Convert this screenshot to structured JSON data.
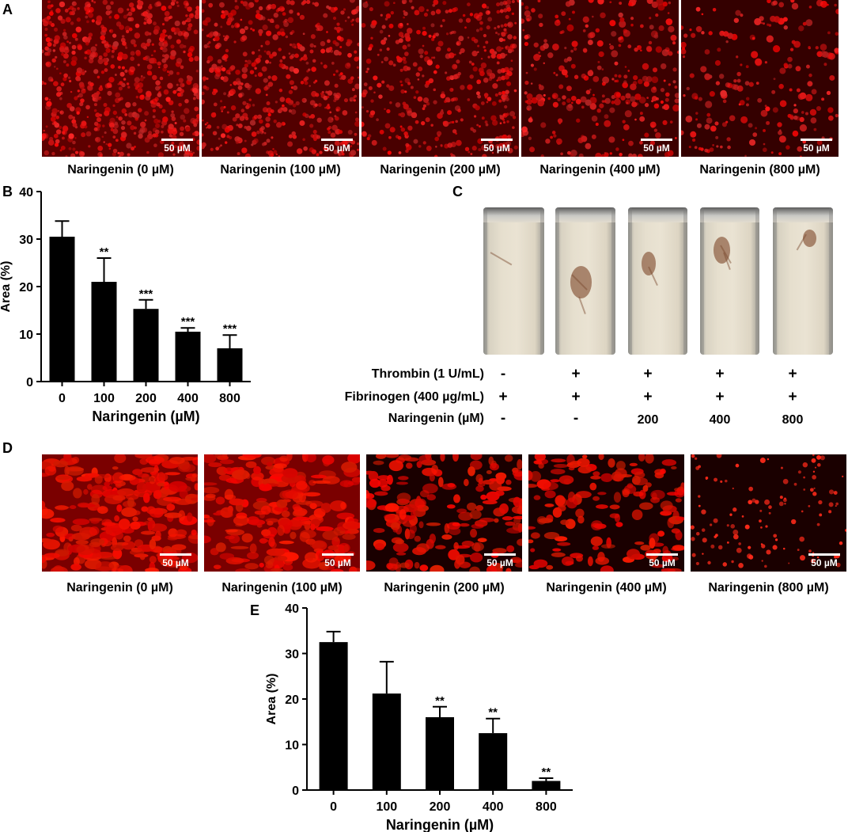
{
  "panels": {
    "A": {
      "letter": "A",
      "images": [
        {
          "caption": "Naringenin (0 µM)",
          "scale": "50 µM",
          "density": 0.9
        },
        {
          "caption": "Naringenin (100 µM)",
          "scale": "50 µM",
          "density": 0.7
        },
        {
          "caption": "Naringenin (200 µM)",
          "scale": "50 µM",
          "density": 0.55
        },
        {
          "caption": "Naringenin (400 µM)",
          "scale": "50 µM",
          "density": 0.35
        },
        {
          "caption": "Naringenin (800 µM)",
          "scale": "50 µM",
          "density": 0.2
        }
      ]
    },
    "B": {
      "letter": "B"
    },
    "C": {
      "letter": "C",
      "rows": [
        {
          "label": "Thrombin (1 U/mL)",
          "marks": [
            "-",
            "+",
            "+",
            "+",
            "+"
          ]
        },
        {
          "label": "Fibrinogen (400 µg/mL)",
          "marks": [
            "+",
            "+",
            "+",
            "+",
            "+"
          ]
        },
        {
          "label": "Naringenin (µM)",
          "marks": [
            "-",
            "-",
            "200",
            "400",
            "800"
          ]
        }
      ]
    },
    "D": {
      "letter": "D",
      "images": [
        {
          "caption": "Naringenin (0 µM)",
          "scale": "50 µM",
          "density": 1.0
        },
        {
          "caption": "Naringenin (100 µM)",
          "scale": "50 µM",
          "density": 0.85
        },
        {
          "caption": "Naringenin (200 µM)",
          "scale": "50 µM",
          "density": 0.6
        },
        {
          "caption": "Naringenin (400 µM)",
          "scale": "50 µM",
          "density": 0.45
        },
        {
          "caption": "Naringenin (800 µM)",
          "scale": "50 µM",
          "density": 0.12
        }
      ]
    },
    "E": {
      "letter": "E"
    }
  },
  "chart_data": [
    {
      "panel": "B",
      "type": "bar",
      "categories": [
        "0",
        "100",
        "200",
        "400",
        "800"
      ],
      "values": [
        30.5,
        21,
        15.3,
        10.5,
        7
      ],
      "errors": [
        3.3,
        5,
        1.9,
        0.8,
        2.8
      ],
      "significance": [
        "",
        "**",
        "***",
        "***",
        "***"
      ],
      "xlabel": "Naringenin (µM)",
      "ylabel": "Area (%)",
      "ylim": [
        0,
        40
      ],
      "yticks": [
        0,
        10,
        20,
        30,
        40
      ],
      "bar_color": "#000000"
    },
    {
      "panel": "E",
      "type": "bar",
      "categories": [
        "0",
        "100",
        "200",
        "400",
        "800"
      ],
      "values": [
        32.5,
        21.2,
        16,
        12.5,
        2
      ],
      "errors": [
        2.3,
        7,
        2.3,
        3.2,
        0.6
      ],
      "significance": [
        "",
        "",
        "**",
        "**",
        "**"
      ],
      "xlabel": "Naringenin (µM)",
      "ylabel": "Area (%)",
      "ylim": [
        0,
        40
      ],
      "yticks": [
        0,
        10,
        20,
        30,
        40
      ],
      "bar_color": "#000000"
    }
  ]
}
